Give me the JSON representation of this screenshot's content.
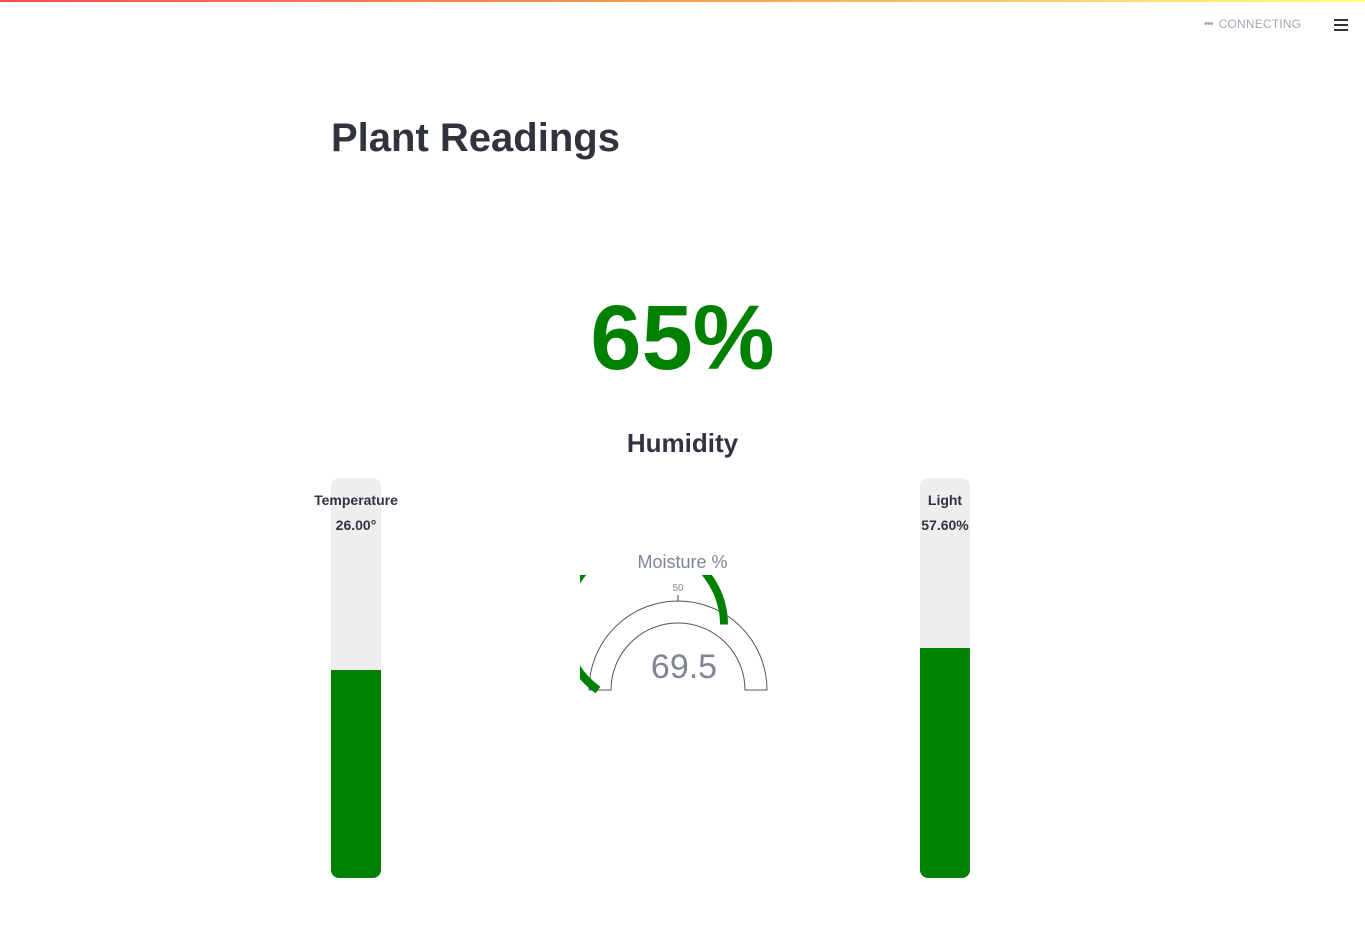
{
  "header": {
    "status_text": "CONNECTING",
    "status_icon": "ellipsis-icon",
    "menu_icon": "hamburger-menu-icon"
  },
  "page": {
    "title": "Plant Readings"
  },
  "humidity": {
    "value_text": "65%",
    "label": "Humidity"
  },
  "temperature": {
    "label": "Temperature",
    "value_text": "26.00°",
    "fill_fraction": 0.52
  },
  "light": {
    "label": "Light",
    "value_text": "57.60%",
    "fill_fraction": 0.576
  },
  "moisture": {
    "title": "Moisture %",
    "value_text": "69.5",
    "value": 69.5,
    "tick_label": "50",
    "range": [
      0,
      100
    ]
  },
  "colors": {
    "accent": "#008000",
    "track": "#eeeeee",
    "text": "#31333f",
    "muted": "#7f8593"
  }
}
